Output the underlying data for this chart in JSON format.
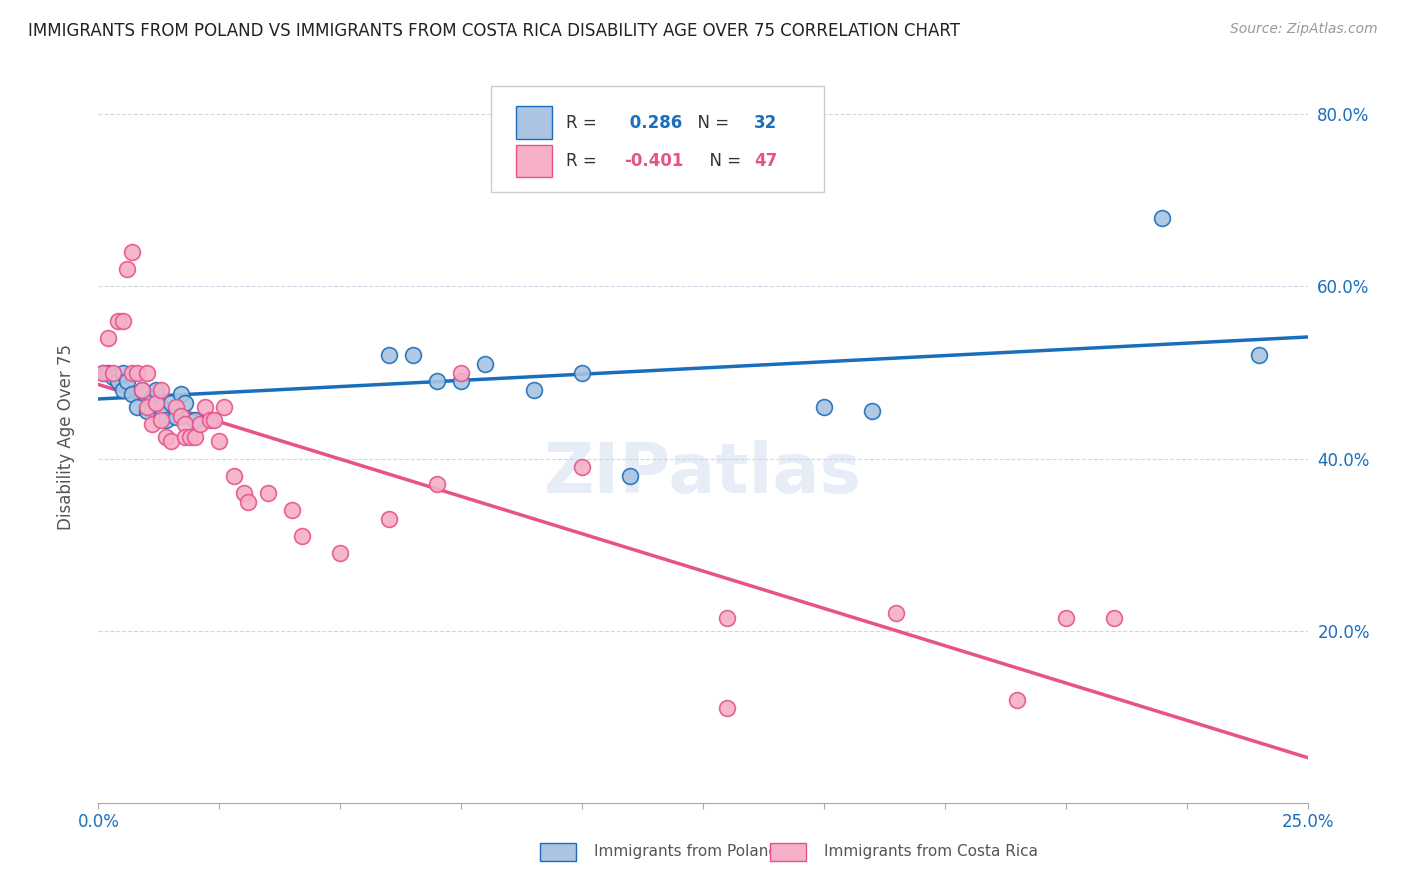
{
  "title": "IMMIGRANTS FROM POLAND VS IMMIGRANTS FROM COSTA RICA DISABILITY AGE OVER 75 CORRELATION CHART",
  "source": "Source: ZipAtlas.com",
  "ylabel": "Disability Age Over 75",
  "legend_poland": "Immigrants from Poland",
  "legend_costa_rica": "Immigrants from Costa Rica",
  "r_poland": 0.286,
  "n_poland": 32,
  "r_costa_rica": -0.401,
  "n_costa_rica": 47,
  "color_poland": "#aac4e2",
  "color_costa_rica": "#f5afc8",
  "trendline_poland": "#1a6fbd",
  "trendline_costa_rica": "#e8528a",
  "background_color": "#ffffff",
  "grid_color": "#d0d8e8",
  "xlim": [
    0.0,
    0.25
  ],
  "ylim": [
    0.0,
    0.85
  ],
  "poland_x": [
    0.001,
    0.002,
    0.003,
    0.004,
    0.005,
    0.005,
    0.006,
    0.007,
    0.008,
    0.009,
    0.01,
    0.011,
    0.012,
    0.013,
    0.014,
    0.015,
    0.016,
    0.017,
    0.018,
    0.02,
    0.06,
    0.065,
    0.07,
    0.075,
    0.08,
    0.09,
    0.1,
    0.11,
    0.15,
    0.16,
    0.22,
    0.24
  ],
  "poland_y": [
    0.5,
    0.5,
    0.495,
    0.49,
    0.48,
    0.5,
    0.49,
    0.475,
    0.46,
    0.48,
    0.455,
    0.47,
    0.48,
    0.46,
    0.445,
    0.465,
    0.448,
    0.475,
    0.465,
    0.445,
    0.52,
    0.52,
    0.49,
    0.49,
    0.51,
    0.48,
    0.5,
    0.38,
    0.46,
    0.455,
    0.68,
    0.52
  ],
  "cr_x": [
    0.001,
    0.002,
    0.003,
    0.004,
    0.005,
    0.006,
    0.007,
    0.007,
    0.008,
    0.009,
    0.01,
    0.01,
    0.011,
    0.012,
    0.013,
    0.013,
    0.014,
    0.015,
    0.016,
    0.017,
    0.018,
    0.018,
    0.019,
    0.02,
    0.021,
    0.022,
    0.023,
    0.024,
    0.025,
    0.026,
    0.028,
    0.03,
    0.031,
    0.035,
    0.04,
    0.042,
    0.05,
    0.06,
    0.07,
    0.075,
    0.1,
    0.13,
    0.13,
    0.165,
    0.19,
    0.2,
    0.21
  ],
  "cr_y": [
    0.5,
    0.54,
    0.5,
    0.56,
    0.56,
    0.62,
    0.64,
    0.5,
    0.5,
    0.48,
    0.5,
    0.46,
    0.44,
    0.465,
    0.445,
    0.48,
    0.425,
    0.42,
    0.46,
    0.45,
    0.44,
    0.425,
    0.425,
    0.425,
    0.44,
    0.46,
    0.445,
    0.445,
    0.42,
    0.46,
    0.38,
    0.36,
    0.35,
    0.36,
    0.34,
    0.31,
    0.29,
    0.33,
    0.37,
    0.5,
    0.39,
    0.215,
    0.11,
    0.22,
    0.12,
    0.215,
    0.215
  ]
}
